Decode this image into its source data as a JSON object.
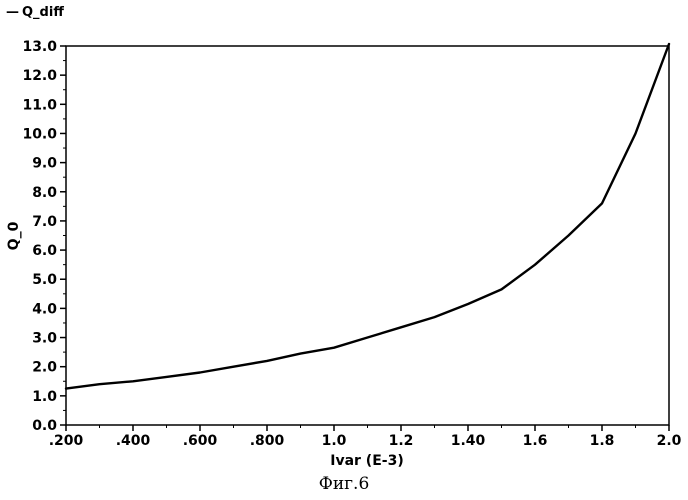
{
  "legend": {
    "marker": "—",
    "label": "Q_diff"
  },
  "caption": "Фиг.6",
  "chart_data": {
    "type": "line",
    "xlabel": "Ivar (E-3)",
    "ylabel": "Q_0",
    "xlim": [
      0.2,
      2.0
    ],
    "ylim": [
      0.0,
      13.0
    ],
    "x_ticks": [
      0.2,
      0.4,
      0.6,
      0.8,
      1.0,
      1.2,
      1.4,
      1.6,
      1.8,
      2.0
    ],
    "x_tick_labels": [
      ".200",
      ".400",
      ".600",
      ".800",
      "1.0",
      "1.2",
      "1.40",
      "1.6",
      "1.8",
      "2.0"
    ],
    "y_ticks": [
      0,
      1,
      2,
      3,
      4,
      5,
      6,
      7,
      8,
      9,
      10,
      11,
      12,
      13
    ],
    "y_tick_labels": [
      "0.0",
      "1.0",
      "2.0",
      "3.0",
      "4.0",
      "5.0",
      "6.0",
      "7.0",
      "8.0",
      "9.0",
      "10.0",
      "11.0",
      "12.0",
      "13.0"
    ],
    "grid": false,
    "series": [
      {
        "name": "Q_diff",
        "color": "#000000",
        "x": [
          0.2,
          0.3,
          0.4,
          0.5,
          0.6,
          0.7,
          0.8,
          0.9,
          1.0,
          1.1,
          1.2,
          1.3,
          1.4,
          1.5,
          1.6,
          1.7,
          1.8,
          1.9,
          2.0
        ],
        "y": [
          1.25,
          1.4,
          1.5,
          1.65,
          1.8,
          2.0,
          2.2,
          2.45,
          2.65,
          3.0,
          3.35,
          3.7,
          4.15,
          4.65,
          5.5,
          6.5,
          7.6,
          10.0,
          13.2
        ]
      }
    ]
  }
}
